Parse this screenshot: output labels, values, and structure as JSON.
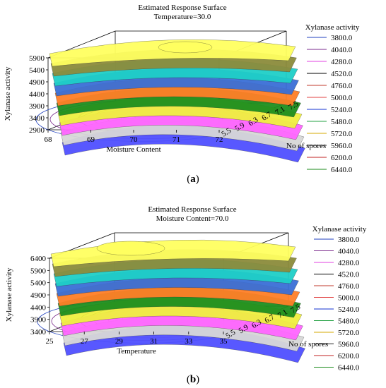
{
  "captions": [
    "a",
    "b"
  ],
  "chart_data": [
    {
      "type": "surface",
      "title": "Estimated Response Surface",
      "subtitle": "Temperature=30.0",
      "xlabel": "Moisture Content",
      "ylabel": "Xylanase activity",
      "zlabel": "No of spores",
      "x_ticks": [
        "68",
        "69",
        "70",
        "71",
        "72"
      ],
      "y_ticks": [
        "2900",
        "3400",
        "3900",
        "4400",
        "4900",
        "5400",
        "5900"
      ],
      "z_ticks": [
        "5.5",
        "5.9",
        "6.3",
        "6.7",
        "7.1",
        "7.5"
      ],
      "xlim": [
        68,
        72
      ],
      "ylim": [
        2900,
        5900
      ],
      "legend_title": "Xylanase activity",
      "legend_position": "right",
      "legend": [
        {
          "label": "3800.0",
          "color": "#1f3fbf"
        },
        {
          "label": "4040.0",
          "color": "#7a2a8c"
        },
        {
          "label": "4280.0",
          "color": "#e040e0"
        },
        {
          "label": "4520.0",
          "color": "#000000"
        },
        {
          "label": "4760.0",
          "color": "#c0392b"
        },
        {
          "label": "5000.0",
          "color": "#e04040"
        },
        {
          "label": "5240.0",
          "color": "#1030d0"
        },
        {
          "label": "5480.0",
          "color": "#20a040"
        },
        {
          "label": "5720.0",
          "color": "#d4a800"
        },
        {
          "label": "5960.0",
          "color": "#222222"
        },
        {
          "label": "6200.0",
          "color": "#c02020"
        },
        {
          "label": "6440.0",
          "color": "#1a8a1a"
        }
      ]
    },
    {
      "type": "surface",
      "title": "Estimated Response Surface",
      "subtitle": "Moisture Content=70.0",
      "xlabel": "Temperature",
      "ylabel": "Xylanase activity",
      "zlabel": "No of spores",
      "x_ticks": [
        "25",
        "27",
        "29",
        "31",
        "33",
        "35"
      ],
      "y_ticks": [
        "3400",
        "3900",
        "4400",
        "4900",
        "5400",
        "5900",
        "6400"
      ],
      "z_ticks": [
        "5.5",
        "5.9",
        "6.3",
        "6.7",
        "7.1",
        "7.5"
      ],
      "xlim": [
        25,
        35
      ],
      "ylim": [
        3400,
        6400
      ],
      "legend_title": "Xylanase activity",
      "legend_position": "right",
      "legend": [
        {
          "label": "3800.0",
          "color": "#1f3fbf"
        },
        {
          "label": "4040.0",
          "color": "#7a2a8c"
        },
        {
          "label": "4280.0",
          "color": "#e040e0"
        },
        {
          "label": "4520.0",
          "color": "#000000"
        },
        {
          "label": "4760.0",
          "color": "#c0392b"
        },
        {
          "label": "5000.0",
          "color": "#e04040"
        },
        {
          "label": "5240.0",
          "color": "#1030d0"
        },
        {
          "label": "5480.0",
          "color": "#20a040"
        },
        {
          "label": "5720.0",
          "color": "#d4a800"
        },
        {
          "label": "5960.0",
          "color": "#222222"
        },
        {
          "label": "6200.0",
          "color": "#c02020"
        },
        {
          "label": "6440.0",
          "color": "#1a8a1a"
        }
      ]
    }
  ]
}
